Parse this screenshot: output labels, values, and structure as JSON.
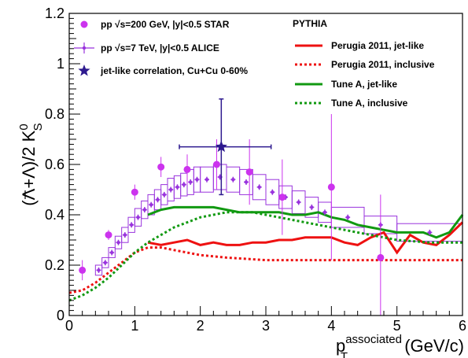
{
  "chart_data": {
    "type": "scatter",
    "xlabel": "p",
    "xlabel_super": "associated",
    "xlabel_sub": "T",
    "xlabel_unit": "(GeV/c)",
    "ylabel_main": "(Λ+Λ)/2 K",
    "ylabel_sup": "0",
    "ylabel_sub": "S",
    "xlim": [
      0,
      6
    ],
    "ylim": [
      0,
      1.2
    ],
    "x_ticks": [
      0,
      1,
      2,
      3,
      4,
      5,
      6
    ],
    "y_ticks": [
      0,
      0.2,
      0.4,
      0.6,
      0.8,
      1,
      1.2
    ],
    "y_tick_labels": [
      "0",
      "0.2",
      "0.4",
      "0.6",
      "0.8",
      "1",
      "1.2"
    ],
    "legend_left": [
      {
        "marker": "circle",
        "color": "#cc33ee",
        "label": "pp  √s=200 GeV,  |y|<0.5 STAR"
      },
      {
        "marker": "cross",
        "color": "#9933dd",
        "label": "pp  √s=7 TeV,  |y|<0.5 ALICE"
      },
      {
        "marker": "star",
        "color": "#2e1a8f",
        "label": "jet-like correlation, Cu+Cu 0-60%"
      }
    ],
    "legend_right_title": "PYTHIA",
    "legend_right": [
      {
        "style": "solid",
        "color": "#ee1111",
        "label": "Perugia 2011, jet-like"
      },
      {
        "style": "dotted",
        "color": "#ee1111",
        "label": "Perugia 2011, inclusive"
      },
      {
        "style": "solid",
        "color": "#119911",
        "label": "Tune A, jet-like"
      },
      {
        "style": "dotted",
        "color": "#119911",
        "label": "Tune A, inclusive"
      }
    ],
    "series": [
      {
        "name": "pp  √s=200 GeV,  |y|<0.5 STAR",
        "color": "#cc33ee",
        "points": [
          {
            "x": 0.2,
            "y": 0.18,
            "yerr": 0.04
          },
          {
            "x": 0.6,
            "y": 0.32,
            "yerr": 0.02
          },
          {
            "x": 1.0,
            "y": 0.49,
            "yerr": 0.03
          },
          {
            "x": 1.4,
            "y": 0.59,
            "yerr": 0.04
          },
          {
            "x": 1.8,
            "y": 0.58,
            "yerr": 0.06
          },
          {
            "x": 2.25,
            "y": 0.6,
            "yerr": 0.1
          },
          {
            "x": 2.75,
            "y": 0.57,
            "yerr": 0.13
          },
          {
            "x": 3.25,
            "y": 0.47,
            "yerr": 0.15
          },
          {
            "x": 4.0,
            "y": 0.51,
            "yerr": 0.29
          },
          {
            "x": 4.75,
            "y": 0.23,
            "yerr": 0.25
          }
        ]
      },
      {
        "name": "pp  √s=7 TeV,  |y|<0.5 ALICE",
        "color": "#9933dd",
        "points": [
          {
            "x": 0.45,
            "y": 0.18,
            "xw": 0.05,
            "sys": 0.02
          },
          {
            "x": 0.55,
            "y": 0.21,
            "xw": 0.05,
            "sys": 0.02
          },
          {
            "x": 0.65,
            "y": 0.25,
            "xw": 0.05,
            "sys": 0.02
          },
          {
            "x": 0.75,
            "y": 0.29,
            "xw": 0.05,
            "sys": 0.025
          },
          {
            "x": 0.85,
            "y": 0.32,
            "xw": 0.05,
            "sys": 0.03
          },
          {
            "x": 0.95,
            "y": 0.36,
            "xw": 0.05,
            "sys": 0.03
          },
          {
            "x": 1.05,
            "y": 0.39,
            "xw": 0.05,
            "sys": 0.035
          },
          {
            "x": 1.15,
            "y": 0.42,
            "xw": 0.05,
            "sys": 0.035
          },
          {
            "x": 1.25,
            "y": 0.44,
            "xw": 0.05,
            "sys": 0.04
          },
          {
            "x": 1.35,
            "y": 0.46,
            "xw": 0.05,
            "sys": 0.04
          },
          {
            "x": 1.45,
            "y": 0.48,
            "xw": 0.05,
            "sys": 0.04
          },
          {
            "x": 1.55,
            "y": 0.5,
            "xw": 0.05,
            "sys": 0.045
          },
          {
            "x": 1.65,
            "y": 0.51,
            "xw": 0.05,
            "sys": 0.045
          },
          {
            "x": 1.75,
            "y": 0.52,
            "xw": 0.05,
            "sys": 0.045
          },
          {
            "x": 1.85,
            "y": 0.53,
            "xw": 0.05,
            "sys": 0.05
          },
          {
            "x": 1.95,
            "y": 0.54,
            "xw": 0.05,
            "sys": 0.05
          },
          {
            "x": 2.1,
            "y": 0.54,
            "xw": 0.1,
            "sys": 0.05
          },
          {
            "x": 2.3,
            "y": 0.55,
            "xw": 0.1,
            "sys": 0.05
          },
          {
            "x": 2.5,
            "y": 0.54,
            "xw": 0.1,
            "sys": 0.05
          },
          {
            "x": 2.7,
            "y": 0.53,
            "xw": 0.1,
            "sys": 0.05
          },
          {
            "x": 2.9,
            "y": 0.51,
            "xw": 0.1,
            "sys": 0.05
          },
          {
            "x": 3.1,
            "y": 0.49,
            "xw": 0.1,
            "sys": 0.05
          },
          {
            "x": 3.3,
            "y": 0.47,
            "xw": 0.1,
            "sys": 0.045
          },
          {
            "x": 3.5,
            "y": 0.45,
            "xw": 0.1,
            "sys": 0.045
          },
          {
            "x": 3.7,
            "y": 0.43,
            "xw": 0.1,
            "sys": 0.04
          },
          {
            "x": 3.9,
            "y": 0.41,
            "xw": 0.1,
            "sys": 0.04
          },
          {
            "x": 4.25,
            "y": 0.39,
            "xw": 0.25,
            "sys": 0.04
          },
          {
            "x": 4.75,
            "y": 0.36,
            "xw": 0.25,
            "sys": 0.035
          },
          {
            "x": 5.5,
            "y": 0.33,
            "xw": 0.5,
            "sys": 0.035
          }
        ]
      },
      {
        "name": "jet-like correlation, Cu+Cu 0-60%",
        "color": "#2e1a8f",
        "points": [
          {
            "x": 2.32,
            "y": 0.67,
            "xlo": 1.68,
            "xhi": 3.08,
            "ylo": 0.48,
            "yhi": 0.86
          }
        ]
      }
    ],
    "curves": [
      {
        "name": "Perugia 2011, jet-like",
        "color": "#ee1111",
        "style": "solid",
        "x": [
          1.2,
          1.4,
          1.6,
          1.8,
          2.0,
          2.2,
          2.4,
          2.6,
          2.8,
          3.0,
          3.2,
          3.4,
          3.6,
          3.8,
          4.0,
          4.2,
          4.4,
          4.6,
          4.8,
          5.0,
          5.2,
          5.4,
          5.6,
          5.8,
          6.0
        ],
        "y": [
          0.29,
          0.28,
          0.29,
          0.3,
          0.28,
          0.29,
          0.28,
          0.28,
          0.29,
          0.29,
          0.3,
          0.3,
          0.31,
          0.31,
          0.31,
          0.29,
          0.28,
          0.31,
          0.33,
          0.25,
          0.32,
          0.29,
          0.28,
          0.32,
          0.37
        ]
      },
      {
        "name": "Perugia 2011, inclusive",
        "color": "#ee1111",
        "style": "dotted",
        "x": [
          0,
          0.2,
          0.4,
          0.6,
          0.8,
          1.0,
          1.2,
          1.4,
          1.6,
          1.8,
          2.0,
          2.4,
          3.0,
          3.5,
          4.0,
          4.5,
          5.0,
          5.5,
          6.0
        ],
        "y": [
          0.09,
          0.1,
          0.13,
          0.17,
          0.21,
          0.25,
          0.27,
          0.27,
          0.26,
          0.25,
          0.24,
          0.23,
          0.22,
          0.22,
          0.22,
          0.22,
          0.22,
          0.22,
          0.22
        ]
      },
      {
        "name": "Tune A, jet-like",
        "color": "#119911",
        "style": "solid",
        "x": [
          1.2,
          1.4,
          1.6,
          1.8,
          2.0,
          2.2,
          2.4,
          2.6,
          2.8,
          3.0,
          3.2,
          3.4,
          3.6,
          3.8,
          4.0,
          4.2,
          4.4,
          4.6,
          4.8,
          5.0,
          5.2,
          5.4,
          5.6,
          5.8,
          6.0
        ],
        "y": [
          0.4,
          0.42,
          0.43,
          0.43,
          0.43,
          0.43,
          0.42,
          0.41,
          0.41,
          0.41,
          0.41,
          0.4,
          0.4,
          0.41,
          0.39,
          0.38,
          0.36,
          0.35,
          0.34,
          0.33,
          0.33,
          0.33,
          0.31,
          0.33,
          0.4
        ]
      },
      {
        "name": "Tune A, inclusive",
        "color": "#119911",
        "style": "dotted",
        "x": [
          0,
          0.2,
          0.4,
          0.6,
          0.8,
          1.0,
          1.2,
          1.4,
          1.6,
          1.8,
          2.0,
          2.2,
          2.4,
          2.6,
          2.8,
          3.0,
          3.4,
          3.8,
          4.2,
          4.6,
          5.0,
          5.5,
          6.0
        ],
        "y": [
          0.06,
          0.08,
          0.11,
          0.15,
          0.2,
          0.25,
          0.29,
          0.32,
          0.35,
          0.37,
          0.39,
          0.4,
          0.41,
          0.41,
          0.41,
          0.4,
          0.38,
          0.36,
          0.34,
          0.32,
          0.3,
          0.29,
          0.29
        ]
      }
    ]
  }
}
